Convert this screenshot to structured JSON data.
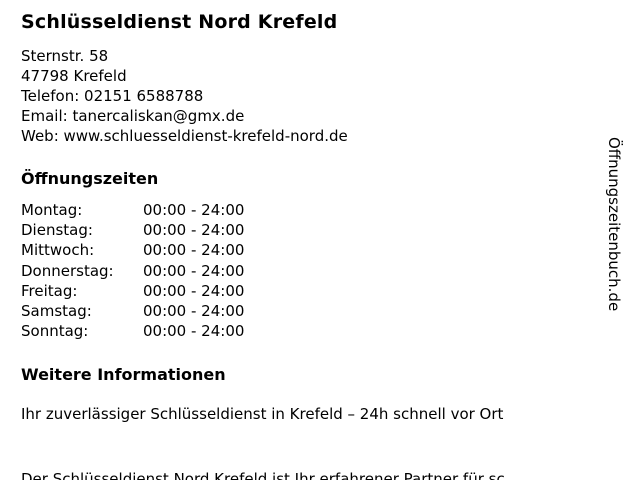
{
  "business": {
    "name": "Schlüsseldienst Nord Krefeld",
    "street": "Sternstr. 58",
    "city": "47798 Krefeld",
    "phone": "Telefon: 02151 6588788",
    "email": "Email: tanercaliskan@gmx.de",
    "web": "Web: www.schluesseldienst-krefeld-nord.de"
  },
  "hours": {
    "heading": "Öffnungszeiten",
    "rows": [
      {
        "day": "Montag:",
        "time": "00:00 - 24:00"
      },
      {
        "day": "Dienstag:",
        "time": "00:00 - 24:00"
      },
      {
        "day": "Mittwoch:",
        "time": "00:00 - 24:00"
      },
      {
        "day": "Donnerstag:",
        "time": "00:00 - 24:00"
      },
      {
        "day": "Freitag:",
        "time": "00:00 - 24:00"
      },
      {
        "day": "Samstag:",
        "time": "00:00 - 24:00"
      },
      {
        "day": "Sonntag:",
        "time": "00:00 - 24:00"
      }
    ]
  },
  "info": {
    "heading": "Weitere Informationen",
    "line1": "Ihr zuverlässiger Schlüsseldienst in Krefeld – 24h schnell vor Ort",
    "line2": "Der Schlüsseldienst Nord Krefeld ist Ihr erfahrener Partner für sc..."
  },
  "watermark": "Öffnungszeitenbuch.de"
}
